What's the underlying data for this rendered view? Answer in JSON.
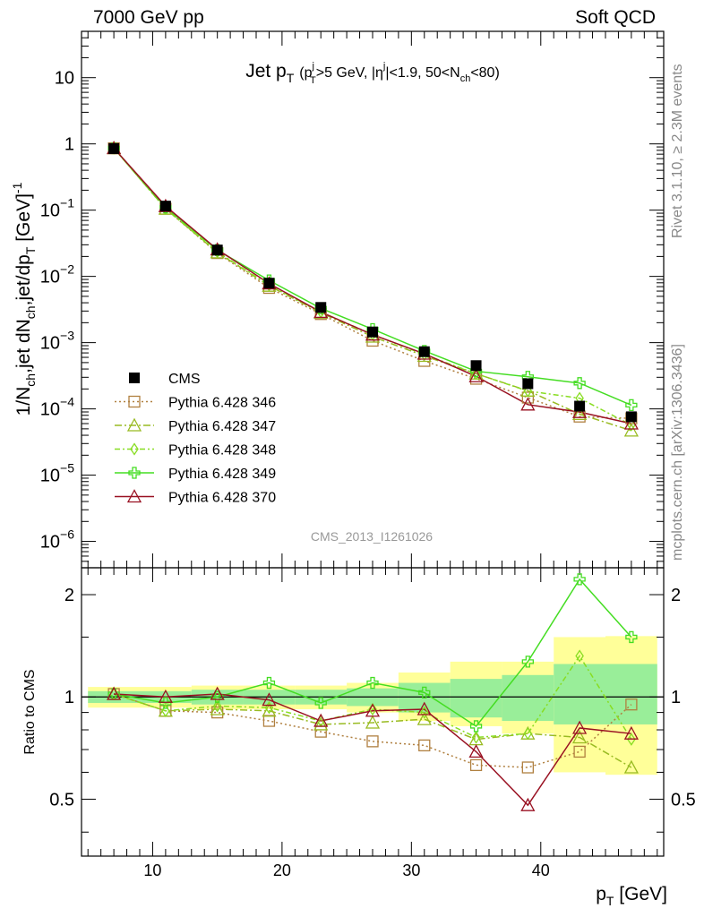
{
  "header": {
    "left": "7000 GeV pp",
    "right": "Soft QCD",
    "rivet": "Rivet 3.1.10, ≥ 2.3M events",
    "mcplots": "mcplots.cern.ch [arXiv:1306.3436]"
  },
  "chart_data": [
    {
      "type": "line",
      "title": "Jet p_T (p_T^j>5 GeV, |η^j|<1.9, 50<N_ch<80)",
      "title_parts": {
        "main": "Jet p",
        "main_sub": "T",
        "open": "(p",
        "p_sup": "j",
        "p_sub": "T",
        "mid": ">5 GeV, |η",
        "eta_sup": "j",
        "cut": "|<1.9, 50<N",
        "n_sub": "ch",
        "close": "<80)"
      },
      "ylabel": "1/N_ch,jet dN_ch,jet/dp_T [GeV]^-1",
      "ylabel_parts": {
        "a": "1/N",
        "a_sub": "ch",
        "b": ",jet dN",
        "b_sub": "ch",
        "c": ",jet/dp",
        "c_sub": "T",
        "d": " [GeV]",
        "d_sup": "-1"
      },
      "watermark": "CMS_2013_I1261026",
      "yscale": "log",
      "ylim": [
        4e-07,
        50
      ],
      "xlim": [
        4.5,
        49.5
      ],
      "y_ticks": [
        {
          "v": 1e-06,
          "b": "10",
          "e": "−6"
        },
        {
          "v": 1e-05,
          "b": "10",
          "e": "−5"
        },
        {
          "v": 0.0001,
          "b": "10",
          "e": "−4"
        },
        {
          "v": 0.001,
          "b": "10",
          "e": "−3"
        },
        {
          "v": 0.01,
          "b": "10",
          "e": "−2"
        },
        {
          "v": 0.1,
          "b": "10",
          "e": "−1"
        },
        {
          "v": 1,
          "b": "1",
          "e": ""
        },
        {
          "v": 10,
          "b": "10",
          "e": ""
        }
      ],
      "legend_position": "center-left",
      "x": [
        7,
        11,
        15,
        19,
        23,
        27,
        31,
        35,
        39,
        43,
        47
      ],
      "data_series": {
        "name": "CMS",
        "color": "#000000",
        "values": [
          0.85,
          0.115,
          0.025,
          0.0079,
          0.0034,
          0.00145,
          0.00073,
          0.00045,
          0.00024,
          0.00011,
          7.6e-05
        ]
      },
      "series": [
        {
          "name": "Pythia 6.428 346",
          "color": "#b08040",
          "dash": "2,3",
          "marker": "square",
          "values": [
            0.86,
            0.105,
            0.0225,
            0.0067,
            0.0027,
            0.00107,
            0.00053,
            0.000285,
            0.000148,
            7.65e-05,
            7.2e-05
          ]
        },
        {
          "name": "Pythia 6.428 347",
          "color": "#99bb22",
          "dash": "8,3,2,3",
          "marker": "triangle",
          "values": [
            0.86,
            0.105,
            0.023,
            0.0072,
            0.00283,
            0.00123,
            0.00063,
            0.00034,
            0.000188,
            8.35e-05,
            4.7e-05
          ]
        },
        {
          "name": "Pythia 6.428 348",
          "color": "#88dd22",
          "dash": "6,3,2,3",
          "marker": "diamond",
          "values": [
            0.86,
            0.105,
            0.0235,
            0.0074,
            0.0029,
            0.00133,
            0.00066,
            0.00034,
            0.000186,
            0.000145,
            5.7e-05
          ]
        },
        {
          "name": "Pythia 6.428 349",
          "color": "#44dd22",
          "dash": "",
          "marker": "cross",
          "values": [
            0.86,
            0.11,
            0.025,
            0.0087,
            0.0033,
            0.0016,
            0.00075,
            0.00037,
            0.000305,
            0.000245,
            0.000114
          ]
        },
        {
          "name": "Pythia 6.428 370",
          "color": "#991122",
          "dash": "",
          "marker": "triangle",
          "values": [
            0.86,
            0.115,
            0.0255,
            0.0078,
            0.0029,
            0.00132,
            0.00068,
            0.00031,
            0.000116,
            8.95e-05,
            6e-05
          ]
        }
      ]
    },
    {
      "type": "line",
      "ylabel": "Ratio to CMS",
      "xlabel": "p_T [GeV]",
      "xlabel_parts": {
        "a": "p",
        "a_sub": "T",
        "b": " [GeV]"
      },
      "yscale": "log",
      "ylim": [
        0.34,
        2.4
      ],
      "xlim": [
        4.5,
        49.5
      ],
      "x_ticks": [
        10,
        20,
        30,
        40
      ],
      "y_ticks": [
        0.5,
        1,
        2
      ],
      "x": [
        7,
        11,
        15,
        19,
        23,
        27,
        31,
        35,
        39,
        43,
        47
      ],
      "bins": [
        [
          5,
          9
        ],
        [
          9,
          13
        ],
        [
          13,
          17
        ],
        [
          17,
          21
        ],
        [
          21,
          25
        ],
        [
          25,
          29
        ],
        [
          29,
          33
        ],
        [
          33,
          37
        ],
        [
          37,
          41
        ],
        [
          41,
          45
        ],
        [
          45,
          49
        ]
      ],
      "band_stat": [
        [
          0.96,
          1.04
        ],
        [
          0.96,
          1.04
        ],
        [
          0.95,
          1.05
        ],
        [
          0.95,
          1.05
        ],
        [
          0.95,
          1.05
        ],
        [
          0.94,
          1.06
        ],
        [
          0.9,
          1.1
        ],
        [
          0.87,
          1.13
        ],
        [
          0.85,
          1.16
        ],
        [
          0.83,
          1.25
        ],
        [
          0.83,
          1.25
        ]
      ],
      "band_total": [
        [
          0.93,
          1.07
        ],
        [
          0.93,
          1.07
        ],
        [
          0.92,
          1.08
        ],
        [
          0.92,
          1.08
        ],
        [
          0.92,
          1.08
        ],
        [
          0.9,
          1.1
        ],
        [
          0.85,
          1.18
        ],
        [
          0.82,
          1.27
        ],
        [
          0.78,
          1.27
        ],
        [
          0.6,
          1.5
        ],
        [
          0.59,
          1.51
        ]
      ],
      "series": [
        {
          "name": "Pythia 6.428 346",
          "values": [
            1.02,
            0.91,
            0.9,
            0.85,
            0.79,
            0.74,
            0.72,
            0.63,
            0.62,
            0.69,
            0.95
          ]
        },
        {
          "name": "Pythia 6.428 347",
          "values": [
            1.02,
            0.91,
            0.92,
            0.91,
            0.83,
            0.84,
            0.86,
            0.75,
            0.78,
            0.76,
            0.62
          ]
        },
        {
          "name": "Pythia 6.428 348",
          "values": [
            1.02,
            0.91,
            0.94,
            0.93,
            0.85,
            0.92,
            0.9,
            0.76,
            0.78,
            1.32,
            0.75
          ]
        },
        {
          "name": "Pythia 6.428 349",
          "values": [
            1.02,
            0.96,
            1.0,
            1.1,
            0.96,
            1.1,
            1.03,
            0.82,
            1.27,
            2.22,
            1.5
          ]
        },
        {
          "name": "Pythia 6.428 370",
          "values": [
            1.02,
            1.0,
            1.02,
            0.98,
            0.85,
            0.91,
            0.92,
            0.69,
            0.48,
            0.81,
            0.78
          ]
        }
      ]
    }
  ]
}
